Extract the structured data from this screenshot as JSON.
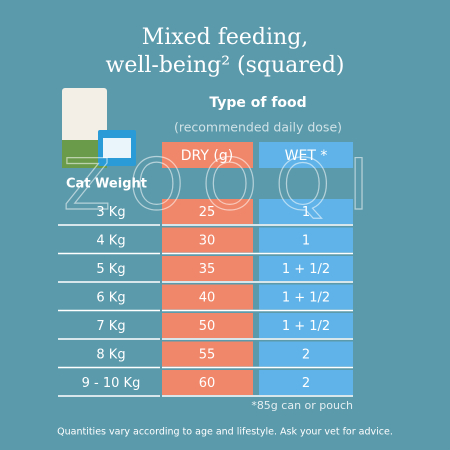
{
  "header": {
    "title_line1": "Mixed feeding,",
    "title_line2": "well-being² (squared)"
  },
  "table": {
    "group_header": "Type of food",
    "group_subheader": "(recommended daily dose)",
    "row_header": "Cat Weight",
    "columns": [
      "DRY (g)",
      "WET *"
    ],
    "rows": [
      [
        "3 Kg",
        25,
        "1"
      ],
      [
        "4 Kg",
        30,
        "1"
      ],
      [
        "5 Kg",
        35,
        "1 + 1/2"
      ],
      [
        "6 Kg",
        40,
        "1 + 1/2"
      ],
      [
        "7 Kg",
        50,
        "1 + 1/2"
      ],
      [
        "8 Kg",
        55,
        "2"
      ],
      [
        "9 - 10 Kg",
        60,
        "2"
      ]
    ]
  },
  "footnote": "*85g can or pouch",
  "advice": "Quantities vary according to age and lifestyle. Ask your vet for advice.",
  "watermark": "ZOOQI"
}
